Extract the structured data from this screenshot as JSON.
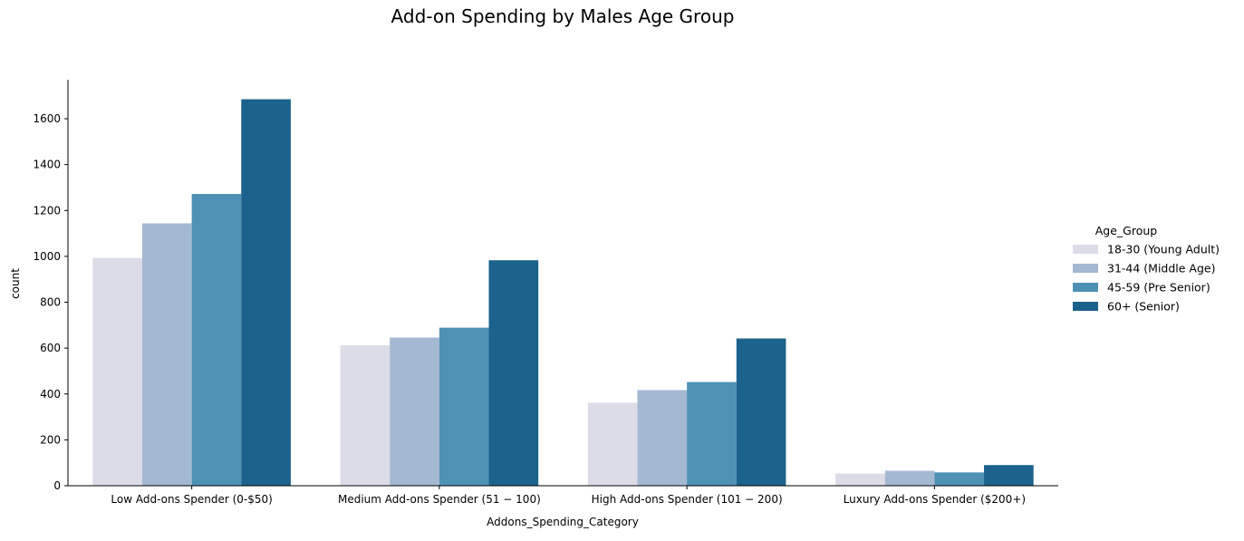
{
  "chart_data": {
    "type": "bar",
    "title": "Add-on Spending by Males Age Group",
    "xlabel": "Addons_Spending_Category",
    "ylabel": "count",
    "categories": [
      "Low Add-ons Spender (0-$50)",
      "Medium Add-ons Spender ($51-$100)",
      "High Add-ons Spender ($101-$200)",
      "Luxury Add-ons Spender ($200+)"
    ],
    "category_labels": [
      "Low Add-ons Spender (0-$50)",
      "Medium Add-ons Spender (51 − 100)",
      "High Add-ons Spender (101 − 200)",
      "Luxury Add-ons Spender ($200+)"
    ],
    "ylim": [
      0,
      1770
    ],
    "yticks": [
      0,
      200,
      400,
      600,
      800,
      1000,
      1200,
      1400,
      1600
    ],
    "grid": false,
    "legend": {
      "title": "Age_Group",
      "position": "right"
    },
    "series": [
      {
        "name": "18-30 (Young Adult)",
        "color": "#dcdce9",
        "values": [
          993,
          612,
          362,
          53
        ]
      },
      {
        "name": "31-44 (Middle Age)",
        "color": "#a5b8d2",
        "values": [
          1144,
          646,
          417,
          65
        ]
      },
      {
        "name": "45-59 (Pre Senior)",
        "color": "#4f90b5",
        "values": [
          1272,
          689,
          452,
          58
        ]
      },
      {
        "name": "60+ (Senior)",
        "color": "#1b628d",
        "values": [
          1685,
          983,
          642,
          90
        ]
      }
    ]
  }
}
